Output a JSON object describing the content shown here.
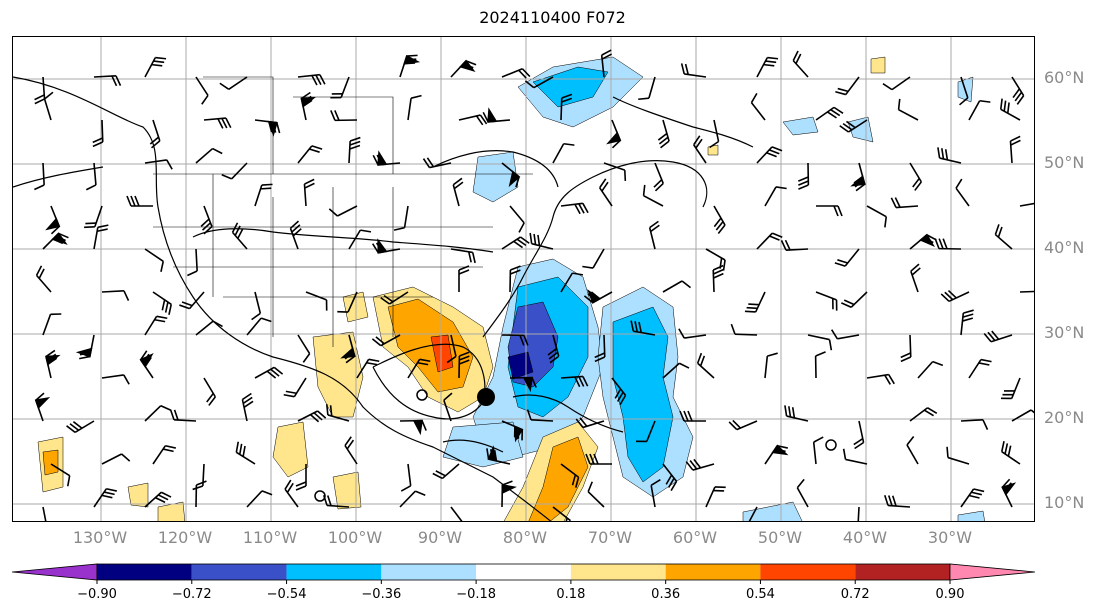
{
  "title": "2024110400 F072",
  "map": {
    "lat_labels": [
      "60°N",
      "50°N",
      "40°N",
      "30°N",
      "20°N",
      "10°N"
    ],
    "lon_labels": [
      "130°W",
      "120°W",
      "110°W",
      "100°W",
      "90°W",
      "80°W",
      "70°W",
      "60°W",
      "50°W",
      "40°W",
      "30°W"
    ],
    "grid": true,
    "features": [
      "coastlines",
      "country-borders",
      "state-borders",
      "wind-barbs",
      "filled-contours"
    ],
    "markers": [
      {
        "name": "large-black-dot",
        "lon": -84,
        "lat": 23
      },
      {
        "name": "small-circle",
        "lon": -90,
        "lat": 23
      }
    ]
  },
  "colorbar": {
    "ticks": [
      "−0.90",
      "−0.72",
      "−0.54",
      "−0.36",
      "−0.18",
      "0.18",
      "0.36",
      "0.54",
      "0.72",
      "0.90"
    ],
    "colors": [
      "#9932CC",
      "#000080",
      "#3A50C8",
      "#00BFFF",
      "#ADDFFF",
      "#FFFFFF",
      "#FFE68C",
      "#FFA500",
      "#FF4500",
      "#B22222",
      "#FF88B0"
    ],
    "extend": "both"
  }
}
